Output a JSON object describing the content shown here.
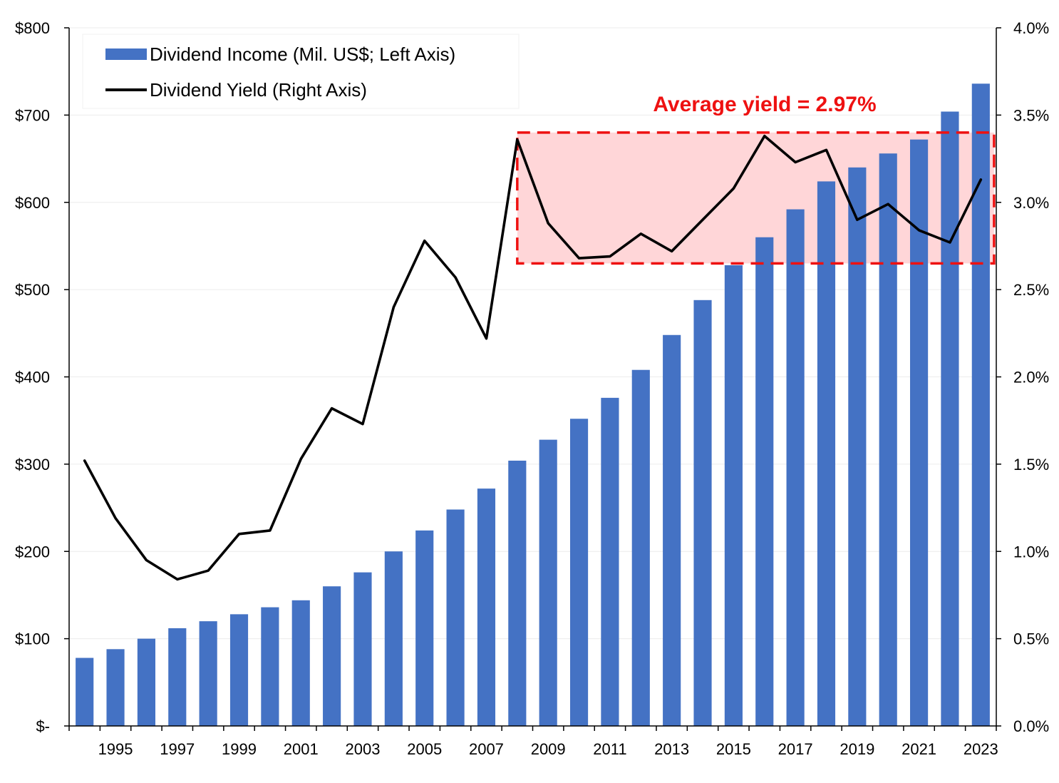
{
  "chart_data": {
    "type": "bar+line",
    "title": "",
    "x": [
      1994,
      1995,
      1996,
      1997,
      1998,
      1999,
      2000,
      2001,
      2002,
      2003,
      2004,
      2005,
      2006,
      2007,
      2008,
      2009,
      2010,
      2011,
      2012,
      2013,
      2014,
      2015,
      2016,
      2017,
      2018,
      2019,
      2020,
      2021,
      2022,
      2023
    ],
    "x_tick_labels": [
      "1995",
      "1997",
      "1999",
      "2001",
      "2003",
      "2005",
      "2007",
      "2009",
      "2011",
      "2013",
      "2015",
      "2017",
      "2019",
      "2021",
      "2023"
    ],
    "series": [
      {
        "name": "Dividend Income (Mil. US$; Left Axis)",
        "type": "bar",
        "axis": "left",
        "color": "#4472c4",
        "values": [
          78,
          88,
          100,
          112,
          120,
          128,
          136,
          144,
          160,
          176,
          200,
          224,
          248,
          272,
          304,
          328,
          352,
          376,
          408,
          448,
          488,
          528,
          560,
          592,
          624,
          640,
          656,
          672,
          704,
          736
        ]
      },
      {
        "name": "Dividend Yield (Right Axis)",
        "type": "line",
        "axis": "right",
        "color": "#000000",
        "values": [
          1.52,
          1.19,
          0.95,
          0.84,
          0.89,
          1.1,
          1.12,
          1.53,
          1.82,
          1.73,
          2.4,
          2.78,
          2.57,
          2.22,
          3.36,
          2.88,
          2.68,
          2.69,
          2.82,
          2.72,
          2.9,
          3.08,
          3.38,
          3.23,
          3.3,
          2.9,
          2.99,
          2.84,
          2.77,
          3.13
        ]
      }
    ],
    "left_axis": {
      "min": 0,
      "max": 800,
      "step": 100,
      "tick_labels": [
        "$-",
        "$100",
        "$200",
        "$300",
        "$400",
        "$500",
        "$600",
        "$700",
        "$800"
      ]
    },
    "right_axis": {
      "min": 0,
      "max": 4.0,
      "step": 0.5,
      "tick_labels": [
        "0.0%",
        "0.5%",
        "1.0%",
        "1.5%",
        "2.0%",
        "2.5%",
        "3.0%",
        "3.5%",
        "4.0%"
      ]
    },
    "grid": true,
    "legend_position": "top-left",
    "annotation": {
      "text": "Average yield = 2.97%",
      "color": "#ee1111",
      "fill_color": "#ffd6d8",
      "x_start": 2008,
      "x_end": 2023,
      "y_low": 2.65,
      "y_high": 3.4
    }
  }
}
